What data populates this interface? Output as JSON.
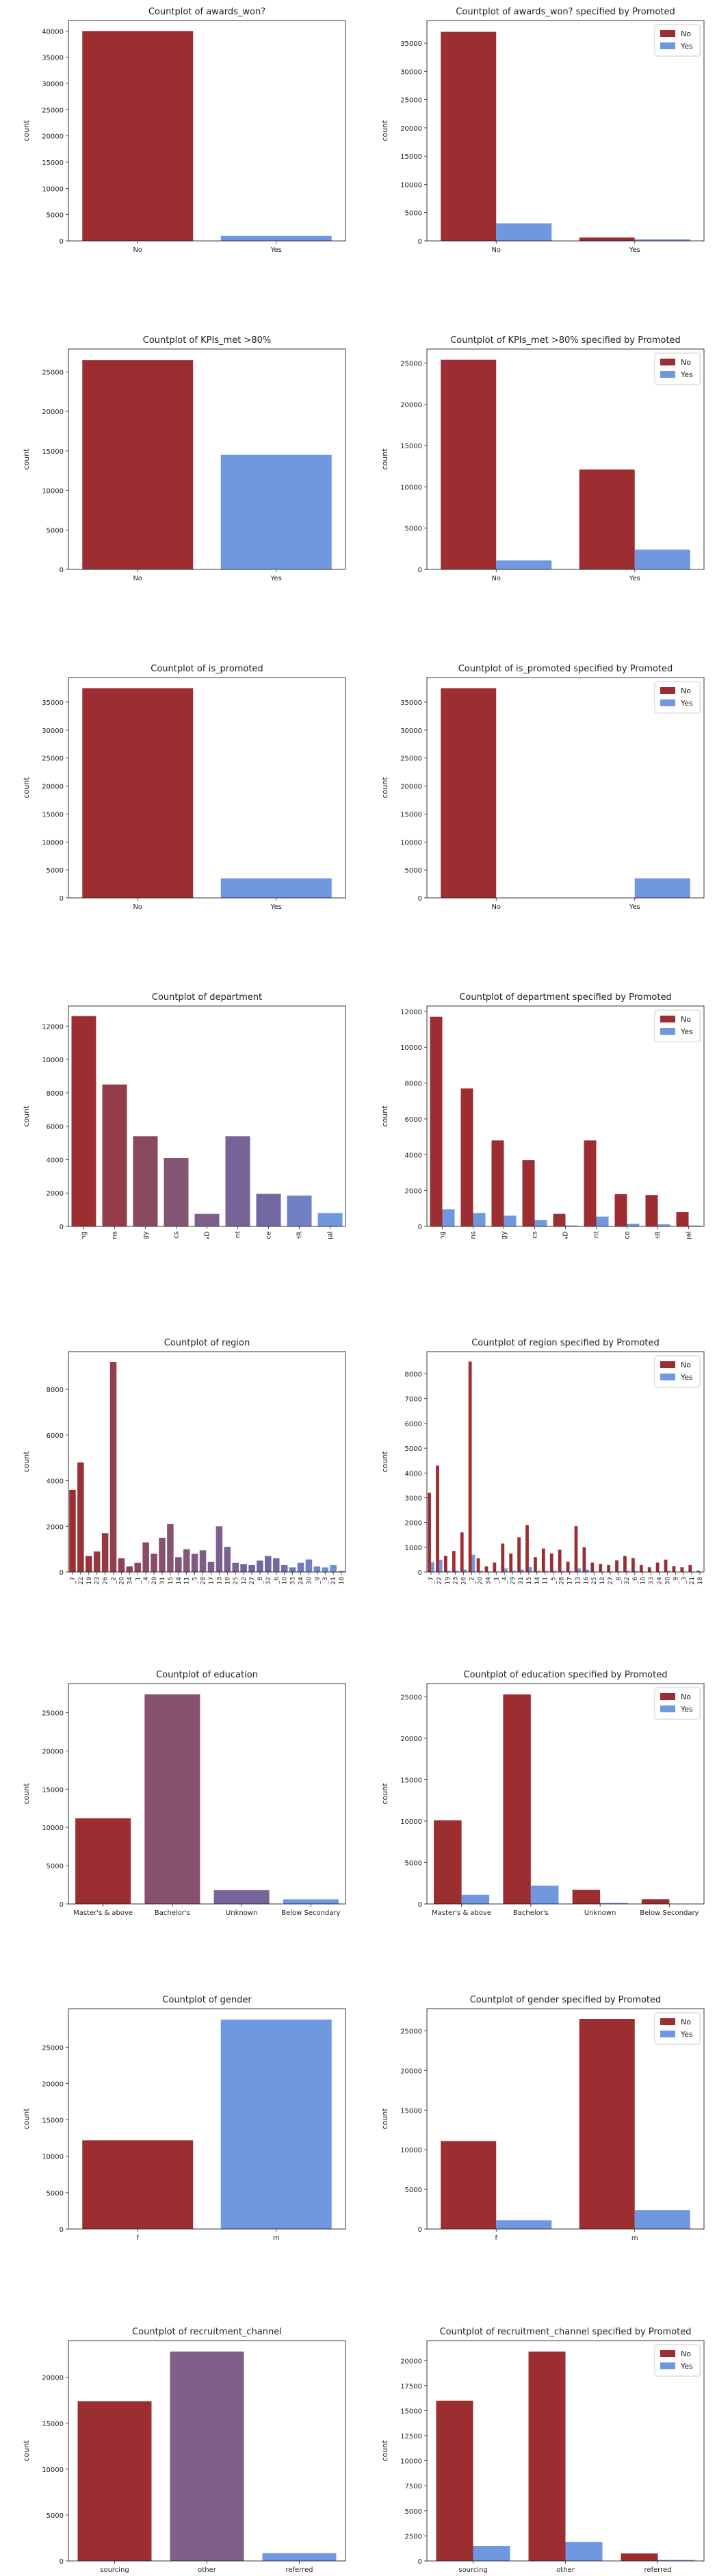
{
  "colors": {
    "no": "#9c2d31",
    "yes": "#6f98e0",
    "gradient": [
      "#9c2d31",
      "#8a4a5e",
      "#7d5f8a",
      "#7367a3",
      "#6f98e0"
    ]
  },
  "chart_data": [
    {
      "type": "bar",
      "title": "Countplot of awards_won?",
      "ylabel": "count",
      "categories": [
        "No",
        "Yes"
      ],
      "values": [
        40000,
        950
      ],
      "ylim": [
        0,
        42000
      ],
      "yticks": [
        0,
        5000,
        10000,
        15000,
        20000,
        25000,
        30000,
        35000,
        40000
      ]
    },
    {
      "type": "bar",
      "title": "Countplot of awards_won? specified by Promoted",
      "ylabel": "count",
      "categories": [
        "No",
        "Yes"
      ],
      "series": [
        {
          "name": "No",
          "values": [
            37000,
            600
          ]
        },
        {
          "name": "Yes",
          "values": [
            3100,
            300
          ]
        }
      ],
      "legend": "top-right",
      "ylim": [
        0,
        39000
      ],
      "yticks": [
        0,
        5000,
        10000,
        15000,
        20000,
        25000,
        30000,
        35000
      ]
    },
    {
      "type": "bar",
      "title": "Countplot of KPIs_met >80%",
      "ylabel": "count",
      "categories": [
        "No",
        "Yes"
      ],
      "values": [
        26500,
        14500
      ],
      "ylim": [
        0,
        27900
      ],
      "yticks": [
        0,
        5000,
        10000,
        15000,
        20000,
        25000
      ]
    },
    {
      "type": "bar",
      "title": "Countplot of KPIs_met >80% specified by Promoted",
      "ylabel": "count",
      "categories": [
        "No",
        "Yes"
      ],
      "series": [
        {
          "name": "No",
          "values": [
            25400,
            12100
          ]
        },
        {
          "name": "Yes",
          "values": [
            1100,
            2400
          ]
        }
      ],
      "legend": "top-right",
      "ylim": [
        0,
        26700
      ],
      "yticks": [
        0,
        5000,
        10000,
        15000,
        20000,
        25000
      ]
    },
    {
      "type": "bar",
      "title": "Countplot of is_promoted",
      "ylabel": "count",
      "categories": [
        "No",
        "Yes"
      ],
      "values": [
        37500,
        3500
      ],
      "ylim": [
        0,
        39400
      ],
      "yticks": [
        0,
        5000,
        10000,
        15000,
        20000,
        25000,
        30000,
        35000
      ]
    },
    {
      "type": "bar",
      "title": "Countplot of is_promoted specified by Promoted",
      "ylabel": "count",
      "categories": [
        "No",
        "Yes"
      ],
      "series": [
        {
          "name": "No",
          "values": [
            37500,
            0
          ]
        },
        {
          "name": "Yes",
          "values": [
            0,
            3500
          ]
        }
      ],
      "legend": "top-right",
      "ylim": [
        0,
        39400
      ],
      "yticks": [
        0,
        5000,
        10000,
        15000,
        20000,
        25000,
        30000,
        35000
      ]
    },
    {
      "type": "bar",
      "title": "Countplot of department",
      "ylabel": "count",
      "categories": [
        "Sales & Marketing",
        "Operations",
        "Technology",
        "Analytics",
        "R&D",
        "Procurement",
        "Finance",
        "HR",
        "Legal"
      ],
      "values": [
        12600,
        8500,
        5400,
        4100,
        750,
        5400,
        1950,
        1850,
        800
      ],
      "ylim": [
        0,
        13200
      ],
      "yticks": [
        0,
        2000,
        4000,
        6000,
        8000,
        10000,
        12000
      ]
    },
    {
      "type": "bar",
      "title": "Countplot of department specified by Promoted",
      "ylabel": "count",
      "categories": [
        "Sales & Marketing",
        "Operations",
        "Technology",
        "Analytics",
        "R&D",
        "Procurement",
        "Finance",
        "HR",
        "Legal"
      ],
      "series": [
        {
          "name": "No",
          "values": [
            11700,
            7700,
            4800,
            3700,
            700,
            4800,
            1800,
            1750,
            800
          ]
        },
        {
          "name": "Yes",
          "values": [
            950,
            750,
            600,
            350,
            50,
            550,
            150,
            120,
            50
          ]
        }
      ],
      "legend": "top-right",
      "ylim": [
        0,
        12300
      ],
      "yticks": [
        0,
        2000,
        4000,
        6000,
        8000,
        10000,
        12000
      ]
    },
    {
      "type": "bar",
      "title": "Countplot of region",
      "ylabel": "count",
      "categories": [
        "region_7",
        "region_22",
        "region_19",
        "region_23",
        "region_26",
        "region_2",
        "region_20",
        "region_34",
        "region_1",
        "region_4",
        "region_29",
        "region_31",
        "region_15",
        "region_14",
        "region_11",
        "region_5",
        "region_28",
        "region_17",
        "region_13",
        "region_16",
        "region_25",
        "region_12",
        "region_27",
        "region_8",
        "region_32",
        "region_6",
        "region_10",
        "region_33",
        "region_24",
        "region_30",
        "region_9",
        "region_3",
        "region_21",
        "region_18"
      ],
      "values": [
        3600,
        4800,
        700,
        900,
        1700,
        9200,
        600,
        250,
        400,
        1300,
        800,
        1500,
        2100,
        650,
        1000,
        800,
        950,
        450,
        2000,
        1100,
        400,
        350,
        300,
        500,
        700,
        600,
        300,
        200,
        400,
        550,
        250,
        200,
        300,
        50
      ],
      "ylim": [
        0,
        9650
      ],
      "yticks": [
        0,
        2000,
        4000,
        6000,
        8000
      ]
    },
    {
      "type": "bar",
      "title": "Countplot of region specified by Promoted",
      "ylabel": "count",
      "categories": [
        "region_7",
        "region_22",
        "region_19",
        "region_23",
        "region_26",
        "region_2",
        "region_20",
        "region_34",
        "region_1",
        "region_4",
        "region_29",
        "region_31",
        "region_15",
        "region_14",
        "region_11",
        "region_5",
        "region_28",
        "region_17",
        "region_13",
        "region_16",
        "region_25",
        "region_12",
        "region_27",
        "region_8",
        "region_32",
        "region_6",
        "region_10",
        "region_33",
        "region_24",
        "region_30",
        "region_9",
        "region_3",
        "region_21",
        "region_18"
      ],
      "series": [
        {
          "name": "No",
          "values": [
            3200,
            4300,
            650,
            850,
            1600,
            8500,
            550,
            230,
            380,
            1150,
            750,
            1400,
            1900,
            600,
            950,
            750,
            900,
            420,
            1850,
            1000,
            380,
            330,
            280,
            470,
            650,
            560,
            280,
            190,
            380,
            500,
            240,
            190,
            280,
            50
          ]
        },
        {
          "name": "Yes",
          "values": [
            400,
            500,
            50,
            50,
            100,
            700,
            50,
            20,
            20,
            150,
            50,
            100,
            200,
            50,
            50,
            50,
            50,
            30,
            150,
            100,
            20,
            20,
            20,
            30,
            50,
            40,
            20,
            10,
            20,
            50,
            10,
            10,
            20,
            0
          ]
        }
      ],
      "legend": "top-right",
      "ylim": [
        0,
        8900
      ],
      "yticks": [
        0,
        1000,
        2000,
        3000,
        4000,
        5000,
        6000,
        7000,
        8000
      ]
    },
    {
      "type": "bar",
      "title": "Countplot of education",
      "ylabel": "count",
      "categories": [
        "Master's & above",
        "Bachelor's",
        "Unknown",
        "Below Secondary"
      ],
      "values": [
        11200,
        27400,
        1800,
        600
      ],
      "ylim": [
        0,
        28800
      ],
      "yticks": [
        0,
        5000,
        10000,
        15000,
        20000,
        25000
      ]
    },
    {
      "type": "bar",
      "title": "Countplot of education specified by Promoted",
      "ylabel": "count",
      "categories": [
        "Master's & above",
        "Bachelor's",
        "Unknown",
        "Below Secondary"
      ],
      "series": [
        {
          "name": "No",
          "values": [
            10100,
            25300,
            1700,
            560
          ]
        },
        {
          "name": "Yes",
          "values": [
            1100,
            2200,
            120,
            40
          ]
        }
      ],
      "legend": "top-right",
      "ylim": [
        0,
        26600
      ],
      "yticks": [
        0,
        5000,
        10000,
        15000,
        20000,
        25000
      ]
    },
    {
      "type": "bar",
      "title": "Countplot of gender",
      "ylabel": "count",
      "categories": [
        "f",
        "m"
      ],
      "values": [
        12200,
        28800
      ],
      "ylim": [
        0,
        30300
      ],
      "yticks": [
        0,
        5000,
        10000,
        15000,
        20000,
        25000
      ]
    },
    {
      "type": "bar",
      "title": "Countplot of gender specified by Promoted",
      "ylabel": "count",
      "categories": [
        "f",
        "m"
      ],
      "series": [
        {
          "name": "No",
          "values": [
            11100,
            26500
          ]
        },
        {
          "name": "Yes",
          "values": [
            1100,
            2400
          ]
        }
      ],
      "legend": "top-right",
      "ylim": [
        0,
        27800
      ],
      "yticks": [
        0,
        5000,
        10000,
        15000,
        20000,
        25000
      ]
    },
    {
      "type": "bar",
      "title": "Countplot of recruitment_channel",
      "ylabel": "count",
      "categories": [
        "sourcing",
        "other",
        "referred"
      ],
      "values": [
        17400,
        22800,
        850
      ],
      "ylim": [
        0,
        24000
      ],
      "yticks": [
        0,
        5000,
        10000,
        15000,
        20000
      ]
    },
    {
      "type": "bar",
      "title": "Countplot of recruitment_channel specified by Promoted",
      "ylabel": "count",
      "categories": [
        "sourcing",
        "other",
        "referred"
      ],
      "series": [
        {
          "name": "No",
          "values": [
            16000,
            20900,
            750
          ]
        },
        {
          "name": "Yes",
          "values": [
            1500,
            1900,
            100
          ]
        }
      ],
      "legend": "top-right",
      "ylim": [
        0,
        22000
      ],
      "yticks": [
        0,
        2500,
        5000,
        7500,
        10000,
        12500,
        15000,
        17500,
        20000
      ]
    }
  ]
}
